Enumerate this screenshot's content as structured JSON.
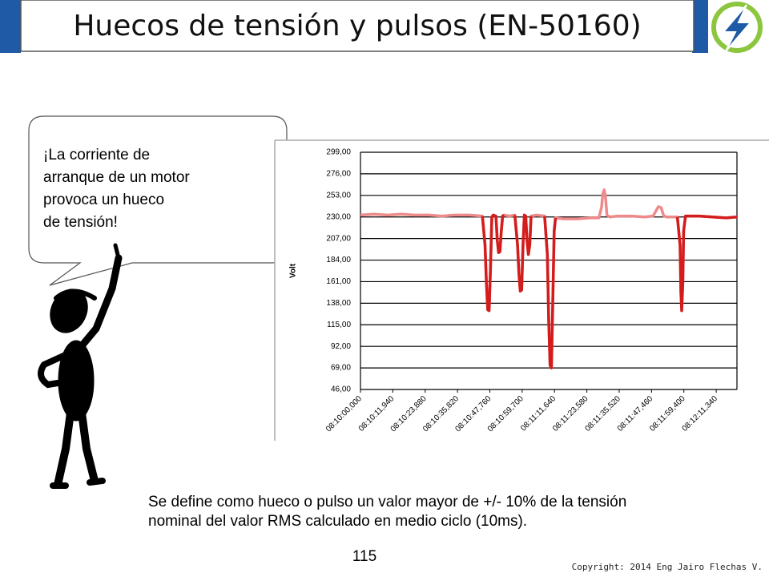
{
  "header": {
    "title": "Huecos de tensión y pulsos  (EN-50160)"
  },
  "bubble": {
    "lines": [
      "¡La corriente de",
      "arranque de un motor",
      "provoca un hueco",
      "de tensión!"
    ]
  },
  "chart_data": {
    "type": "line",
    "ylabel": "Volt",
    "xlim": [
      0,
      139
    ],
    "xticks": [
      {
        "value": 0,
        "label": "08:10:00,000"
      },
      {
        "value": 11.94,
        "label": "08:10:11,940"
      },
      {
        "value": 23.88,
        "label": "08:10:23,880"
      },
      {
        "value": 35.82,
        "label": "08:10:35,820"
      },
      {
        "value": 47.76,
        "label": "08:10:47,760"
      },
      {
        "value": 59.7,
        "label": "08:10:59,700"
      },
      {
        "value": 71.64,
        "label": "08:11:11,640"
      },
      {
        "value": 83.58,
        "label": "08:11:23,580"
      },
      {
        "value": 95.52,
        "label": "08:11:35,520"
      },
      {
        "value": 107.46,
        "label": "08:11:47,460"
      },
      {
        "value": 119.4,
        "label": "08:11:59,400"
      },
      {
        "value": 131.34,
        "label": "08:12:11,340"
      }
    ],
    "ylim": [
      46,
      299
    ],
    "yticks": [
      {
        "value": 46,
        "label": "46,00"
      },
      {
        "value": 69,
        "label": "69,00"
      },
      {
        "value": 92,
        "label": "92,00"
      },
      {
        "value": 115,
        "label": "115,00"
      },
      {
        "value": 138,
        "label": "138,00"
      },
      {
        "value": 161,
        "label": "161,00"
      },
      {
        "value": 184,
        "label": "184,00"
      },
      {
        "value": 207,
        "label": "207,00"
      },
      {
        "value": 230,
        "label": "230,00"
      },
      {
        "value": 253,
        "label": "253,00"
      },
      {
        "value": 276,
        "label": "276,00"
      },
      {
        "value": 299,
        "label": "299,00"
      }
    ],
    "grid": true,
    "x": [
      0,
      5,
      10,
      15,
      20,
      25,
      30,
      35,
      40,
      45,
      46,
      46.5,
      47,
      47.5,
      48,
      48.5,
      49,
      50,
      50.5,
      51,
      51.5,
      52,
      52.5,
      53,
      55,
      57,
      58,
      58.5,
      59,
      59.5,
      60,
      60.5,
      61,
      61.5,
      62,
      62.5,
      63,
      65,
      68,
      69,
      69.5,
      70,
      70.5,
      71,
      71.5,
      72,
      75,
      80,
      85,
      88,
      89,
      89.5,
      90,
      90.5,
      91,
      92,
      95,
      100,
      105,
      108,
      109,
      110,
      111,
      112,
      113,
      115,
      117,
      118,
      118.3,
      118.6,
      119,
      119.3,
      120,
      125,
      130,
      135,
      139
    ],
    "series": [
      {
        "color": "#ee8a8a",
        "values": [
          232,
          233,
          232,
          233,
          232,
          232,
          231,
          232,
          232,
          231,
          200,
          160,
          131,
          130,
          175,
          230,
          232,
          231,
          205,
          192,
          193,
          215,
          231,
          232,
          231,
          232,
          200,
          170,
          151,
          152,
          200,
          232,
          231,
          205,
          190,
          200,
          231,
          232,
          231,
          190,
          120,
          72,
          69,
          140,
          215,
          229,
          228,
          228,
          229,
          229,
          240,
          255,
          259,
          250,
          232,
          230,
          231,
          231,
          230,
          231,
          236,
          241,
          240,
          231,
          230,
          230,
          230,
          200,
          150,
          130,
          160,
          215,
          231,
          231,
          230,
          229,
          230
        ]
      },
      {
        "color": "#d41c1c",
        "values": [
          null,
          null,
          null,
          null,
          null,
          null,
          null,
          null,
          null,
          231,
          200,
          160,
          131,
          130,
          175,
          230,
          232,
          231,
          205,
          192,
          193,
          215,
          231,
          232,
          null,
          232,
          200,
          170,
          151,
          152,
          200,
          232,
          231,
          205,
          190,
          200,
          231,
          null,
          231,
          190,
          120,
          72,
          69,
          140,
          215,
          229,
          null,
          null,
          null,
          null,
          null,
          null,
          null,
          null,
          null,
          null,
          null,
          null,
          null,
          null,
          null,
          null,
          null,
          null,
          null,
          null,
          230,
          200,
          150,
          130,
          160,
          215,
          231,
          231,
          230,
          229,
          230
        ]
      }
    ]
  },
  "definition": {
    "lines": [
      "Se define como hueco o pulso un valor mayor de +/- 10% de la tensión",
      "nominal del valor RMS calculado en medio ciclo (10ms)."
    ]
  },
  "footer": {
    "page_number": "115",
    "copyright": "Copyright: 2014 Eng Jairo Flechas V."
  }
}
